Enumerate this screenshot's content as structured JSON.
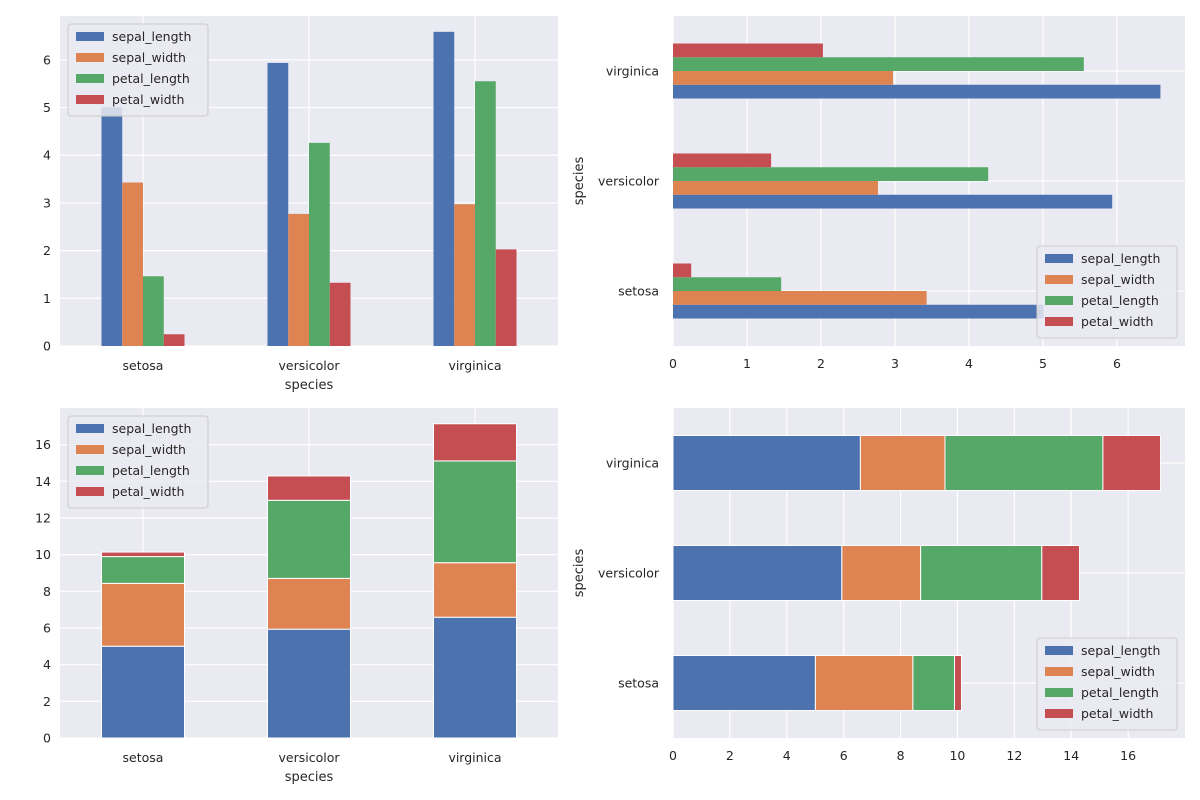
{
  "colors": {
    "sepal_length": "#4c72b0",
    "sepal_width": "#dd8452",
    "petal_length": "#55a868",
    "petal_width": "#c44e52",
    "axes_background": "#eaeaf2",
    "grid": "#ffffff"
  },
  "chart_data": [
    {
      "type": "bar",
      "orientation": "vertical",
      "stacked": false,
      "categories": [
        "setosa",
        "versicolor",
        "virginica"
      ],
      "series": [
        {
          "name": "sepal_length",
          "values": [
            5.006,
            5.936,
            6.588
          ]
        },
        {
          "name": "sepal_width",
          "values": [
            3.428,
            2.77,
            2.974
          ]
        },
        {
          "name": "petal_length",
          "values": [
            1.462,
            4.26,
            5.552
          ]
        },
        {
          "name": "petal_width",
          "values": [
            0.246,
            1.326,
            2.026
          ]
        }
      ],
      "xlabel": "species",
      "ylabel": "",
      "ylim": [
        0,
        6.92
      ],
      "yticks": [
        0,
        1,
        2,
        3,
        4,
        5,
        6
      ],
      "grid": true,
      "legend": "upper-left"
    },
    {
      "type": "bar",
      "orientation": "horizontal",
      "stacked": false,
      "categories": [
        "setosa",
        "versicolor",
        "virginica"
      ],
      "series": [
        {
          "name": "sepal_length",
          "values": [
            5.006,
            5.936,
            6.588
          ]
        },
        {
          "name": "sepal_width",
          "values": [
            3.428,
            2.77,
            2.974
          ]
        },
        {
          "name": "petal_length",
          "values": [
            1.462,
            4.26,
            5.552
          ]
        },
        {
          "name": "petal_width",
          "values": [
            0.246,
            1.326,
            2.026
          ]
        }
      ],
      "xlabel": "",
      "ylabel": "species",
      "xlim": [
        0,
        6.92
      ],
      "xticks": [
        0,
        1,
        2,
        3,
        4,
        5,
        6
      ],
      "grid": true,
      "legend": "lower-right"
    },
    {
      "type": "bar",
      "orientation": "vertical",
      "stacked": true,
      "categories": [
        "setosa",
        "versicolor",
        "virginica"
      ],
      "series": [
        {
          "name": "sepal_length",
          "values": [
            5.006,
            5.936,
            6.588
          ]
        },
        {
          "name": "sepal_width",
          "values": [
            3.428,
            2.77,
            2.974
          ]
        },
        {
          "name": "petal_length",
          "values": [
            1.462,
            4.26,
            5.552
          ]
        },
        {
          "name": "petal_width",
          "values": [
            0.246,
            1.326,
            2.026
          ]
        }
      ],
      "xlabel": "species",
      "ylabel": "",
      "ylim": [
        0,
        18.0
      ],
      "yticks": [
        0,
        2,
        4,
        6,
        8,
        10,
        12,
        14,
        16
      ],
      "grid": true,
      "legend": "upper-left"
    },
    {
      "type": "bar",
      "orientation": "horizontal",
      "stacked": true,
      "categories": [
        "setosa",
        "versicolor",
        "virginica"
      ],
      "series": [
        {
          "name": "sepal_length",
          "values": [
            5.006,
            5.936,
            6.588
          ]
        },
        {
          "name": "sepal_width",
          "values": [
            3.428,
            2.77,
            2.974
          ]
        },
        {
          "name": "petal_length",
          "values": [
            1.462,
            4.26,
            5.552
          ]
        },
        {
          "name": "petal_width",
          "values": [
            0.246,
            1.326,
            2.026
          ]
        }
      ],
      "xlabel": "",
      "ylabel": "species",
      "xlim": [
        0,
        18.0
      ],
      "xticks": [
        0,
        2,
        4,
        6,
        8,
        10,
        12,
        14,
        16
      ],
      "grid": true,
      "legend": "lower-right"
    }
  ]
}
